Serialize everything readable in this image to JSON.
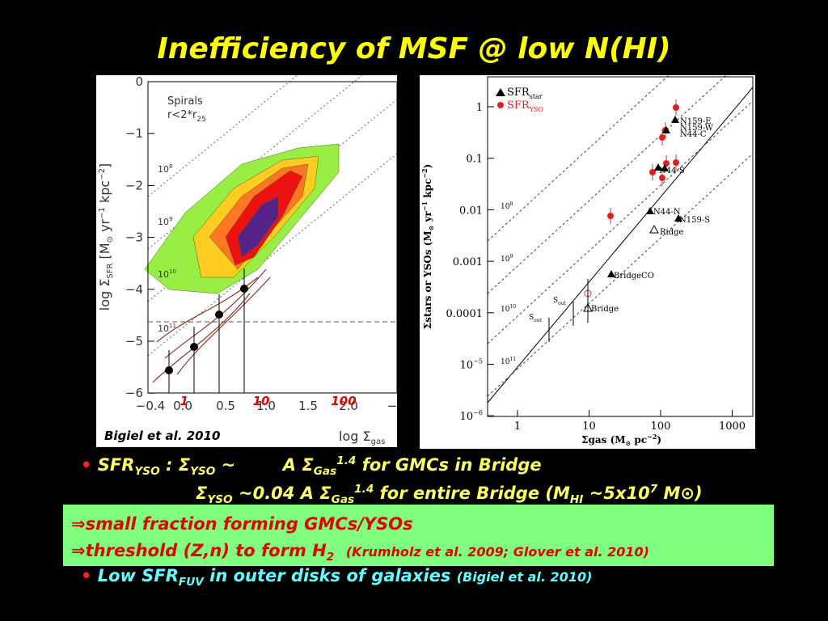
{
  "title": "Inefficiency of MSF @ low N(HI)",
  "left_plot": {
    "annotation": [
      "Spirals",
      "r<2*r",
      "25"
    ],
    "yticks": [
      "0",
      "−1",
      "−2",
      "−3",
      "−4",
      "−5",
      "−6"
    ],
    "xticks": [
      "−0.4",
      "0.0",
      "0.5",
      "1.0",
      "1.5",
      "2.0",
      "−"
    ],
    "red_ticks": [
      "1",
      "10",
      "100"
    ],
    "ylabel": [
      "log Σ",
      "SFR",
      " [M",
      "⊙",
      " yr",
      "−1",
      " kpc",
      "−2",
      "]"
    ],
    "xlabel": [
      "log Σ",
      "gas"
    ],
    "line_labels": [
      [
        "10",
        "8"
      ],
      [
        "10",
        "9"
      ],
      [
        "10",
        "10"
      ],
      [
        "10",
        "11"
      ]
    ],
    "credit": "Bigiel et al. 2010"
  },
  "right_plot": {
    "legend": [
      [
        "SFR",
        "star"
      ],
      [
        "SFR",
        "YSO"
      ]
    ],
    "yticks": [
      [
        "1"
      ],
      [
        "0.1"
      ],
      [
        "0.01"
      ],
      [
        "0.001"
      ],
      [
        "0.0001"
      ],
      [
        "10",
        "−5"
      ],
      [
        "10",
        "−6"
      ]
    ],
    "xticks": [
      "1",
      "10",
      "100",
      "1000"
    ],
    "ylabel": [
      "Σstars or YSOs (M",
      "⊙",
      " yr",
      "−1",
      " kpc",
      "−2",
      ")"
    ],
    "xlabel": [
      "Σgas (M",
      "⊙",
      " pc",
      "−2",
      ")"
    ],
    "line_labels": [
      [
        "10",
        "8"
      ],
      [
        "10",
        "9"
      ],
      [
        "10",
        "10"
      ],
      [
        "10",
        "11"
      ]
    ],
    "point_labels": [
      "N159-E",
      "N159-W",
      "N44-C",
      "N44-S",
      "N44-N",
      "N159-S",
      "Ridge",
      "BridgeCO",
      "Bridge",
      "S",
      "out",
      "S",
      "out"
    ]
  },
  "bullets": [
    [
      "SFR",
      "YSO",
      " : Σ",
      "YSO",
      " ~        A Σ",
      "Gas",
      "1.4",
      " for GMCs in Bridge"
    ],
    [
      "Σ",
      "YSO",
      " ~0.04 A Σ",
      "Gas",
      "1.4",
      " for entire Bridge (M",
      "HI",
      " ~5x10",
      "7",
      " M⊙)"
    ]
  ],
  "box": [
    [
      "⇒small fraction forming GMCs/YSOs"
    ],
    [
      "⇒threshold (Z,n) to form H",
      "2",
      "(Krumholz et al. 2009; Glover et al. 2010)"
    ]
  ],
  "bullet3": [
    "Low SFR",
    "FUV",
    " in outer disks of galaxies ",
    "(Bigiel et al. 2010)"
  ]
}
